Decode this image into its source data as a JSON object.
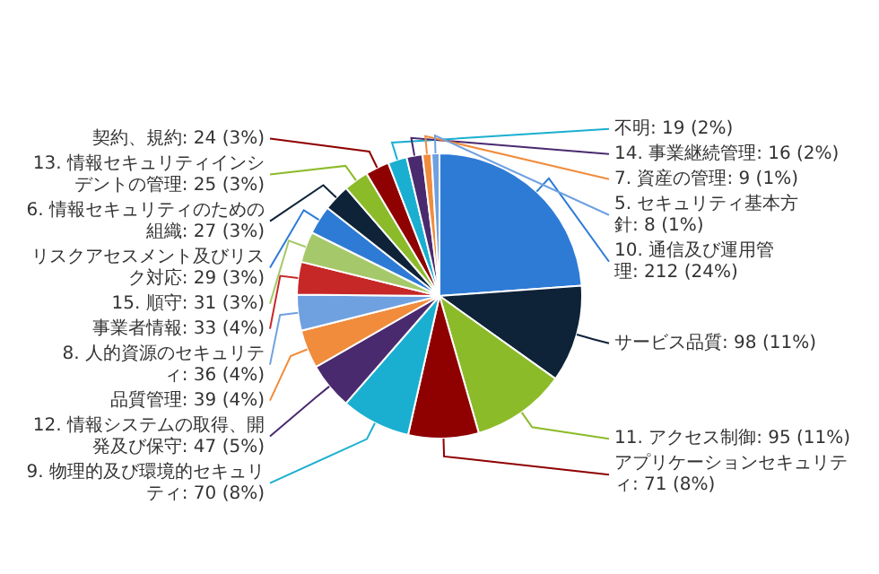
{
  "chart_data": {
    "type": "pie",
    "categories": [
      "10. 通信及び運用管理",
      "サービス品質",
      "11. アクセス制御",
      "アプリケーションセキュリティ",
      "9. 物理的及び環境的セキュリティ",
      "12. 情報システムの取得、開発及び保守",
      "品質管理",
      "8. 人的資源のセキュリティ",
      "事業者情報",
      "15. 順守",
      "リスクアセスメント及びリスク対応",
      "6. 情報セキュリティのための組織",
      "13. 情報セキュリティインシデントの管理",
      "契約、規約",
      "不明",
      "14. 事業継続管理",
      "7. 資産の管理",
      "5. セキュリティ基本方針"
    ],
    "values": [
      212,
      98,
      95,
      71,
      70,
      47,
      39,
      36,
      33,
      31,
      29,
      27,
      25,
      24,
      19,
      16,
      9,
      8
    ],
    "value_labels": [
      "212 (24%)",
      "98 (11%)",
      "95 (11%)",
      "71 (8%)",
      "70 (8%)",
      "47 (5%)",
      "39 (4%)",
      "36 (4%)",
      "33 (4%)",
      "31 (3%)",
      "29 (3%)",
      "27 (3%)",
      "25 (3%)",
      "24 (3%)",
      "19 (2%)",
      "16 (2%)",
      "9 (1%)",
      "8 (1%)"
    ],
    "colors": [
      "#2e7bd6",
      "#0e2238",
      "#8cbb2a",
      "#8f0000",
      "#1aafd0",
      "#4a2a6e",
      "#f08c3c",
      "#6fa1e0",
      "#c62828",
      "#a5c96a",
      "#2e7bd6",
      "#0e2238",
      "#8cbb2a",
      "#8f0000",
      "#1aafd0",
      "#4a2a6e",
      "#f08c3c",
      "#6fa1e0"
    ],
    "legend": false
  }
}
